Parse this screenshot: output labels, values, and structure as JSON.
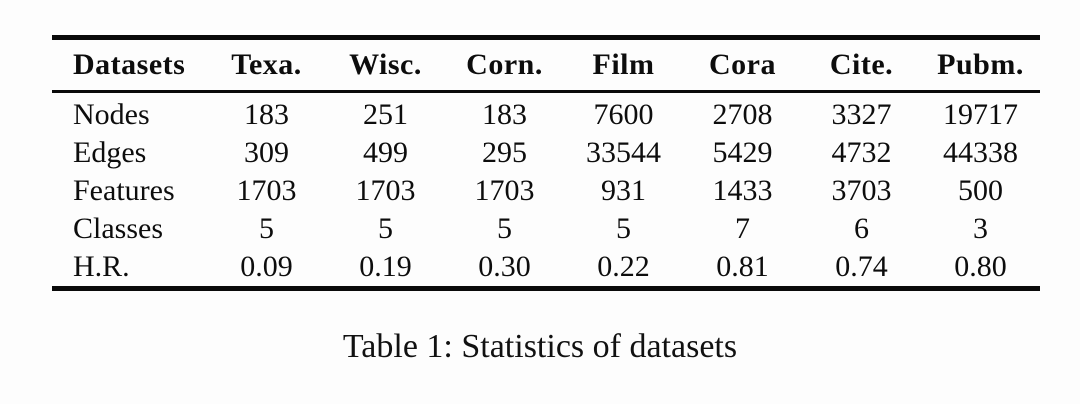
{
  "table": {
    "columns": [
      "Datasets",
      "Texa.",
      "Wisc.",
      "Corn.",
      "Film",
      "Cora",
      "Cite.",
      "Pubm."
    ],
    "rows": [
      {
        "label": "Nodes",
        "values": [
          "183",
          "251",
          "183",
          "7600",
          "2708",
          "3327",
          "19717"
        ]
      },
      {
        "label": "Edges",
        "values": [
          "309",
          "499",
          "295",
          "33544",
          "5429",
          "4732",
          "44338"
        ]
      },
      {
        "label": "Features",
        "values": [
          "1703",
          "1703",
          "1703",
          "931",
          "1433",
          "3703",
          "500"
        ]
      },
      {
        "label": "Classes",
        "values": [
          "5",
          "5",
          "5",
          "5",
          "7",
          "6",
          "3"
        ]
      },
      {
        "label": "H.R.",
        "values": [
          "0.09",
          "0.19",
          "0.30",
          "0.22",
          "0.81",
          "0.74",
          "0.80"
        ]
      }
    ]
  },
  "caption": "Table 1: Statistics of datasets",
  "colors": {
    "rule": "#0a0a0a",
    "text": "#0d0d0d",
    "background": "#fdfdfd"
  }
}
